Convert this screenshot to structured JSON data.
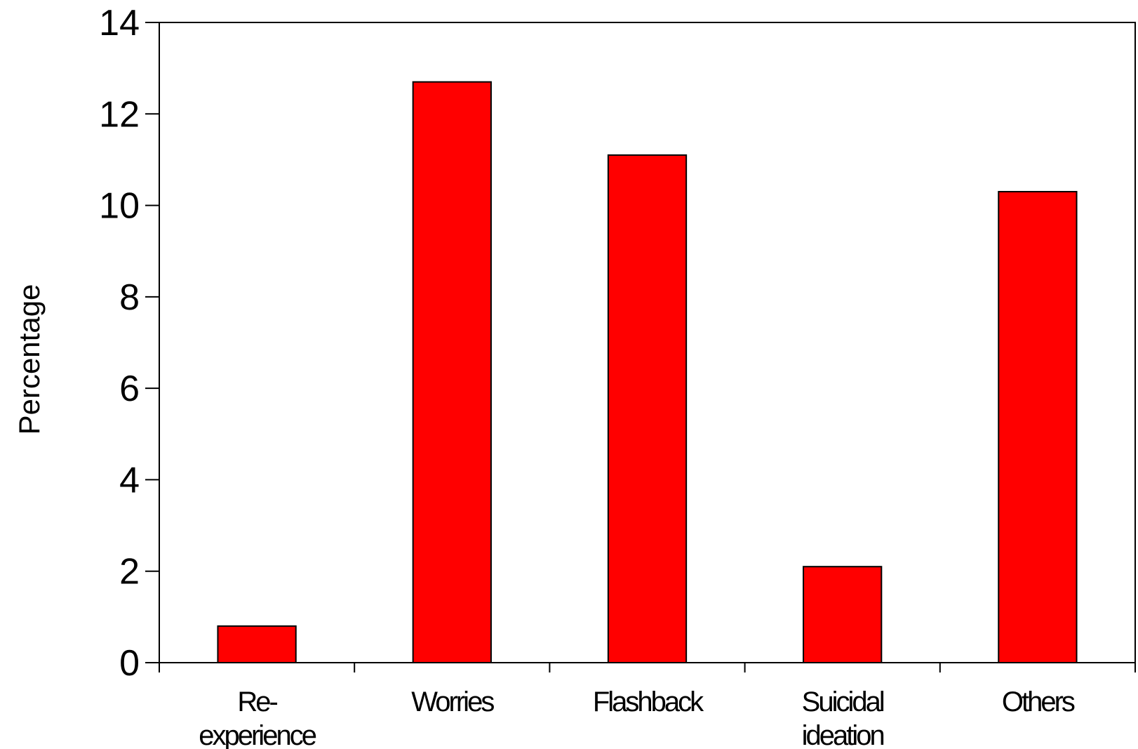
{
  "chart_data": {
    "type": "bar",
    "categories": [
      [
        "Re-",
        "experience"
      ],
      [
        "Worries"
      ],
      [
        "Flashback"
      ],
      [
        "Suicidal",
        "ideation"
      ],
      [
        "Others"
      ]
    ],
    "values": [
      0.8,
      12.7,
      11.1,
      2.1,
      10.3
    ],
    "title": "",
    "xlabel": "",
    "ylabel": "Percentage",
    "ylim": [
      0,
      14
    ],
    "yticks": [
      "0",
      "2",
      "4",
      "6",
      "8",
      "10",
      "12",
      "14"
    ],
    "grid": false,
    "legend": "none",
    "bar_color": "#ff0000",
    "bar_stroke": "#000000"
  }
}
